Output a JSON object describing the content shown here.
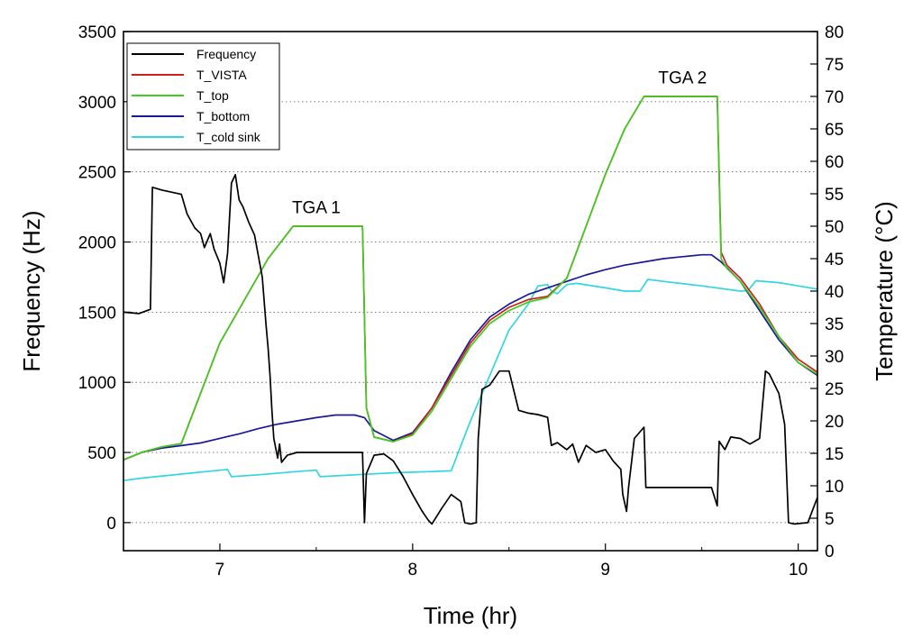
{
  "chart_data": {
    "type": "line",
    "title": "",
    "xlabel": "Time (hr)",
    "ylabel_left": "Frequency (Hz)",
    "ylabel_right": "Temperature (°C)",
    "xlim": [
      6.5,
      10.1
    ],
    "ylim_left": [
      -200,
      3500
    ],
    "ylim_right": [
      0,
      80
    ],
    "x_ticks": [
      7,
      8,
      9,
      10
    ],
    "y_left_ticks": [
      0,
      500,
      1000,
      1500,
      2000,
      2500,
      3000,
      3500
    ],
    "y_right_ticks": [
      0,
      5,
      10,
      15,
      20,
      25,
      30,
      35,
      40,
      45,
      50,
      55,
      60,
      65,
      70,
      75,
      80
    ],
    "grid": "horizontal dotted",
    "legend_position": "top-left",
    "annotations": [
      {
        "text": "TGA 1",
        "x": 7.5,
        "y_temp": 52
      },
      {
        "text": "TGA 2",
        "x": 9.4,
        "y_temp": 72
      }
    ],
    "series": [
      {
        "name": "Frequency",
        "axis": "left",
        "color": "#000000",
        "points": [
          [
            6.5,
            1500
          ],
          [
            6.58,
            1490
          ],
          [
            6.64,
            1520
          ],
          [
            6.65,
            2390
          ],
          [
            6.7,
            2370
          ],
          [
            6.8,
            2340
          ],
          [
            6.83,
            2200
          ],
          [
            6.87,
            2100
          ],
          [
            6.9,
            2060
          ],
          [
            6.92,
            1960
          ],
          [
            6.95,
            2060
          ],
          [
            6.97,
            1950
          ],
          [
            7.0,
            1850
          ],
          [
            7.02,
            1710
          ],
          [
            7.04,
            1920
          ],
          [
            7.06,
            2420
          ],
          [
            7.08,
            2480
          ],
          [
            7.1,
            2300
          ],
          [
            7.12,
            2250
          ],
          [
            7.15,
            2140
          ],
          [
            7.18,
            2050
          ],
          [
            7.2,
            1900
          ],
          [
            7.22,
            1750
          ],
          [
            7.24,
            1400
          ],
          [
            7.25,
            1250
          ],
          [
            7.26,
            1050
          ],
          [
            7.27,
            800
          ],
          [
            7.28,
            600
          ],
          [
            7.3,
            460
          ],
          [
            7.31,
            560
          ],
          [
            7.32,
            430
          ],
          [
            7.35,
            480
          ],
          [
            7.4,
            500
          ],
          [
            7.5,
            500
          ],
          [
            7.6,
            500
          ],
          [
            7.74,
            500
          ],
          [
            7.75,
            0
          ],
          [
            7.76,
            350
          ],
          [
            7.8,
            480
          ],
          [
            7.85,
            490
          ],
          [
            7.9,
            440
          ],
          [
            7.95,
            330
          ],
          [
            8.0,
            200
          ],
          [
            8.05,
            80
          ],
          [
            8.08,
            20
          ],
          [
            8.1,
            -10
          ],
          [
            8.15,
            100
          ],
          [
            8.2,
            200
          ],
          [
            8.25,
            150
          ],
          [
            8.27,
            0
          ],
          [
            8.3,
            -10
          ],
          [
            8.33,
            0
          ],
          [
            8.34,
            600
          ],
          [
            8.36,
            950
          ],
          [
            8.4,
            980
          ],
          [
            8.45,
            1080
          ],
          [
            8.5,
            1080
          ],
          [
            8.55,
            800
          ],
          [
            8.6,
            780
          ],
          [
            8.65,
            770
          ],
          [
            8.7,
            750
          ],
          [
            8.72,
            550
          ],
          [
            8.75,
            570
          ],
          [
            8.8,
            520
          ],
          [
            8.83,
            560
          ],
          [
            8.86,
            430
          ],
          [
            8.9,
            550
          ],
          [
            8.95,
            500
          ],
          [
            9.0,
            520
          ],
          [
            9.04,
            440
          ],
          [
            9.08,
            380
          ],
          [
            9.09,
            200
          ],
          [
            9.11,
            80
          ],
          [
            9.12,
            250
          ],
          [
            9.15,
            600
          ],
          [
            9.2,
            680
          ],
          [
            9.21,
            250
          ],
          [
            9.3,
            250
          ],
          [
            9.4,
            250
          ],
          [
            9.55,
            250
          ],
          [
            9.58,
            120
          ],
          [
            9.59,
            580
          ],
          [
            9.62,
            520
          ],
          [
            9.65,
            610
          ],
          [
            9.7,
            600
          ],
          [
            9.75,
            560
          ],
          [
            9.8,
            600
          ],
          [
            9.83,
            1080
          ],
          [
            9.85,
            1060
          ],
          [
            9.9,
            920
          ],
          [
            9.93,
            700
          ],
          [
            9.95,
            0
          ],
          [
            9.98,
            -10
          ],
          [
            10.05,
            0
          ],
          [
            10.1,
            180
          ]
        ]
      },
      {
        "name": "T_VISTA",
        "axis": "right",
        "color": "#cc1f1f",
        "points": [
          [
            6.5,
            14
          ],
          [
            6.6,
            15.2
          ],
          [
            6.7,
            16
          ],
          [
            6.8,
            16.5
          ],
          [
            7.0,
            32
          ],
          [
            7.25,
            45
          ],
          [
            7.38,
            50
          ],
          [
            7.5,
            50
          ],
          [
            7.74,
            50
          ],
          [
            7.76,
            22
          ],
          [
            7.8,
            17.5
          ],
          [
            7.9,
            16.8
          ],
          [
            8.0,
            18
          ],
          [
            8.1,
            22
          ],
          [
            8.2,
            27
          ],
          [
            8.3,
            32
          ],
          [
            8.4,
            35.5
          ],
          [
            8.5,
            37.5
          ],
          [
            8.6,
            38.7
          ],
          [
            8.7,
            39.2
          ],
          [
            8.8,
            42
          ],
          [
            8.9,
            50
          ],
          [
            9.0,
            58
          ],
          [
            9.1,
            65
          ],
          [
            9.2,
            70
          ],
          [
            9.4,
            70
          ],
          [
            9.58,
            70
          ],
          [
            9.6,
            46
          ],
          [
            9.63,
            44
          ],
          [
            9.7,
            42
          ],
          [
            9.8,
            38
          ],
          [
            9.9,
            33
          ],
          [
            10.0,
            29.5
          ],
          [
            10.1,
            27.5
          ]
        ]
      },
      {
        "name": "T_top",
        "axis": "right",
        "color": "#3dcc1f",
        "points": [
          [
            6.5,
            14
          ],
          [
            6.6,
            15.2
          ],
          [
            6.7,
            16
          ],
          [
            6.8,
            16.5
          ],
          [
            7.0,
            32
          ],
          [
            7.25,
            45
          ],
          [
            7.38,
            50
          ],
          [
            7.5,
            50
          ],
          [
            7.74,
            50
          ],
          [
            7.76,
            22
          ],
          [
            7.8,
            17.5
          ],
          [
            7.9,
            16.8
          ],
          [
            8.0,
            17.8
          ],
          [
            8.1,
            21.5
          ],
          [
            8.2,
            26.5
          ],
          [
            8.3,
            31.5
          ],
          [
            8.4,
            35
          ],
          [
            8.5,
            37
          ],
          [
            8.6,
            38.3
          ],
          [
            8.7,
            39
          ],
          [
            8.8,
            42
          ],
          [
            8.9,
            50
          ],
          [
            9.0,
            58
          ],
          [
            9.1,
            65
          ],
          [
            9.2,
            70
          ],
          [
            9.4,
            70
          ],
          [
            9.58,
            70
          ],
          [
            9.6,
            45
          ],
          [
            9.63,
            43.5
          ],
          [
            9.7,
            41.5
          ],
          [
            9.8,
            37.5
          ],
          [
            9.9,
            33
          ],
          [
            10.0,
            29
          ],
          [
            10.1,
            27.2
          ]
        ]
      },
      {
        "name": "T_bottom",
        "axis": "right",
        "color": "#1a1a99",
        "points": [
          [
            6.5,
            14
          ],
          [
            6.6,
            15.2
          ],
          [
            6.7,
            15.8
          ],
          [
            6.8,
            16.2
          ],
          [
            6.9,
            16.6
          ],
          [
            7.0,
            17.3
          ],
          [
            7.1,
            18
          ],
          [
            7.2,
            18.8
          ],
          [
            7.3,
            19.5
          ],
          [
            7.4,
            20
          ],
          [
            7.5,
            20.5
          ],
          [
            7.6,
            20.9
          ],
          [
            7.7,
            20.9
          ],
          [
            7.75,
            20.5
          ],
          [
            7.8,
            18.5
          ],
          [
            7.9,
            17
          ],
          [
            8.0,
            18.2
          ],
          [
            8.1,
            22
          ],
          [
            8.2,
            27.5
          ],
          [
            8.3,
            32.5
          ],
          [
            8.4,
            36
          ],
          [
            8.5,
            38
          ],
          [
            8.6,
            39.5
          ],
          [
            8.7,
            40.5
          ],
          [
            8.8,
            41.5
          ],
          [
            8.9,
            42.5
          ],
          [
            9.0,
            43.3
          ],
          [
            9.1,
            44
          ],
          [
            9.2,
            44.5
          ],
          [
            9.3,
            45
          ],
          [
            9.4,
            45.3
          ],
          [
            9.5,
            45.6
          ],
          [
            9.55,
            45.6
          ],
          [
            9.6,
            44.5
          ],
          [
            9.7,
            41.5
          ],
          [
            9.8,
            37
          ],
          [
            9.9,
            32.5
          ],
          [
            10.0,
            29
          ],
          [
            10.1,
            27
          ]
        ]
      },
      {
        "name": "T_cold sink",
        "axis": "right",
        "color": "#33d6e0",
        "points": [
          [
            6.5,
            10.8
          ],
          [
            6.6,
            11.2
          ],
          [
            6.8,
            11.8
          ],
          [
            7.0,
            12.4
          ],
          [
            7.04,
            12.5
          ],
          [
            7.06,
            11.4
          ],
          [
            7.2,
            11.7
          ],
          [
            7.4,
            12.2
          ],
          [
            7.5,
            12.4
          ],
          [
            7.52,
            11.4
          ],
          [
            7.7,
            11.7
          ],
          [
            7.9,
            12
          ],
          [
            8.0,
            12.1
          ],
          [
            8.1,
            12.2
          ],
          [
            8.2,
            12.3
          ],
          [
            8.3,
            20
          ],
          [
            8.4,
            27
          ],
          [
            8.5,
            34
          ],
          [
            8.6,
            38
          ],
          [
            8.65,
            40.8
          ],
          [
            8.7,
            41
          ],
          [
            8.72,
            40
          ],
          [
            8.75,
            39.6
          ],
          [
            8.8,
            41
          ],
          [
            8.85,
            41.2
          ],
          [
            9.0,
            40.5
          ],
          [
            9.1,
            40
          ],
          [
            9.18,
            40
          ],
          [
            9.22,
            41.8
          ],
          [
            9.3,
            41.5
          ],
          [
            9.5,
            40.8
          ],
          [
            9.7,
            40
          ],
          [
            9.74,
            40.1
          ],
          [
            9.78,
            41.6
          ],
          [
            9.9,
            41.3
          ],
          [
            10.0,
            40.8
          ],
          [
            10.1,
            40.3
          ]
        ]
      }
    ]
  }
}
